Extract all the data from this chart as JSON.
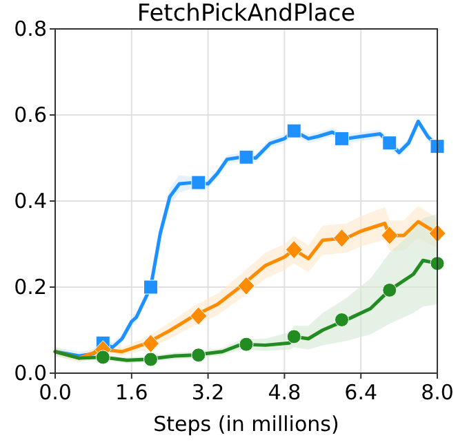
{
  "chart_data": {
    "type": "line",
    "title": "FetchPickAndPlace",
    "xlabel": "Steps (in millions)",
    "xlim": [
      0,
      8
    ],
    "xticks": [
      {
        "value": 0,
        "label": "0.0"
      },
      1.6,
      3.2,
      4.8,
      6.4,
      {
        "value": 8,
        "label": "8.0"
      }
    ],
    "ylim": [
      0,
      0.8
    ],
    "yticks": [
      {
        "value": 0,
        "label": "0.0"
      },
      0.2,
      0.4,
      0.6,
      0.8
    ],
    "grid": true,
    "line_style": "solid",
    "series": [
      {
        "type": "scatter",
        "color": "#1e90ff",
        "marker": "square",
        "x": [
          1,
          2,
          3,
          4,
          5,
          6,
          7,
          8
        ],
        "values": [
          0.07,
          0.2,
          0.443,
          0.502,
          0.563,
          0.545,
          0.535,
          0.527
        ]
      },
      {
        "type": "scatter",
        "color": "#ff8c00",
        "marker": "diamond",
        "x": [
          1,
          2,
          3,
          4,
          5,
          6,
          7,
          8
        ],
        "values": [
          0.055,
          0.069,
          0.133,
          0.203,
          0.287,
          0.314,
          0.32,
          0.325
        ]
      },
      {
        "type": "scatter",
        "color": "#228b22",
        "marker": "circle",
        "x": [
          1,
          2,
          3,
          4,
          5,
          6,
          7,
          8
        ],
        "values": [
          0.037,
          0.032,
          0.042,
          0.067,
          0.085,
          0.124,
          0.193,
          0.255
        ]
      },
      {
        "color": "#1e90ff",
        "marker": "none",
        "x": [
          0,
          0.5,
          0.8,
          1.0,
          1.2,
          1.4,
          1.6,
          1.7,
          2.0,
          2.2,
          2.4,
          2.6,
          2.9,
          3.2,
          3.4,
          3.6,
          3.9,
          4.2,
          4.5,
          4.8,
          5.0,
          5.3,
          5.5,
          5.8,
          6.1,
          6.4,
          6.8,
          7.0,
          7.2,
          7.4,
          7.6,
          7.8,
          8.0
        ],
        "values": [
          0.05,
          0.04,
          0.045,
          0.07,
          0.06,
          0.08,
          0.12,
          0.13,
          0.2,
          0.325,
          0.41,
          0.44,
          0.443,
          0.44,
          0.465,
          0.497,
          0.502,
          0.5,
          0.534,
          0.545,
          0.563,
          0.545,
          0.55,
          0.56,
          0.545,
          0.55,
          0.556,
          0.535,
          0.513,
          0.535,
          0.585,
          0.55,
          0.527
        ],
        "lower": [
          0.04,
          0.03,
          0.035,
          0.06,
          0.05,
          0.07,
          0.11,
          0.12,
          0.19,
          0.31,
          0.39,
          0.42,
          0.43,
          0.43,
          0.455,
          0.487,
          0.492,
          0.49,
          0.524,
          0.535,
          0.553,
          0.535,
          0.54,
          0.55,
          0.535,
          0.54,
          0.546,
          0.525,
          0.503,
          0.525,
          0.575,
          0.54,
          0.517
        ],
        "upper": [
          0.06,
          0.05,
          0.055,
          0.08,
          0.07,
          0.09,
          0.13,
          0.14,
          0.21,
          0.34,
          0.43,
          0.46,
          0.456,
          0.45,
          0.475,
          0.507,
          0.512,
          0.51,
          0.544,
          0.555,
          0.573,
          0.555,
          0.56,
          0.57,
          0.555,
          0.56,
          0.566,
          0.545,
          0.523,
          0.545,
          0.595,
          0.56,
          0.537
        ]
      },
      {
        "color": "#ff8c00",
        "marker": "none",
        "x": [
          0,
          0.5,
          1.0,
          1.4,
          1.9,
          2.4,
          2.9,
          3.4,
          3.9,
          4.4,
          4.8,
          5.0,
          5.3,
          5.6,
          6.1,
          6.4,
          6.9,
          7.0,
          7.3,
          7.6,
          8.0
        ],
        "values": [
          0.05,
          0.035,
          0.055,
          0.05,
          0.069,
          0.099,
          0.133,
          0.16,
          0.203,
          0.25,
          0.27,
          0.287,
          0.266,
          0.309,
          0.314,
          0.33,
          0.348,
          0.32,
          0.32,
          0.352,
          0.325
        ],
        "lower": [
          0.04,
          0.025,
          0.045,
          0.04,
          0.055,
          0.08,
          0.11,
          0.135,
          0.175,
          0.22,
          0.24,
          0.255,
          0.235,
          0.275,
          0.28,
          0.295,
          0.31,
          0.285,
          0.285,
          0.315,
          0.29
        ],
        "upper": [
          0.06,
          0.045,
          0.065,
          0.06,
          0.083,
          0.118,
          0.156,
          0.185,
          0.231,
          0.28,
          0.3,
          0.319,
          0.297,
          0.343,
          0.348,
          0.365,
          0.386,
          0.355,
          0.355,
          0.389,
          0.36
        ]
      },
      {
        "color": "#228b22",
        "marker": "none",
        "x": [
          0,
          0.5,
          1.0,
          1.5,
          1.9,
          2.5,
          2.9,
          3.5,
          3.9,
          4.4,
          4.9,
          5.0,
          5.3,
          5.6,
          6.1,
          6.6,
          7.0,
          7.5,
          7.7,
          8.0
        ],
        "values": [
          0.05,
          0.035,
          0.037,
          0.03,
          0.032,
          0.04,
          0.042,
          0.05,
          0.067,
          0.065,
          0.07,
          0.085,
          0.08,
          0.1,
          0.124,
          0.15,
          0.193,
          0.23,
          0.262,
          0.255
        ],
        "lower": [
          0.04,
          0.028,
          0.03,
          0.023,
          0.025,
          0.032,
          0.034,
          0.042,
          0.055,
          0.052,
          0.055,
          0.06,
          0.055,
          0.065,
          0.075,
          0.09,
          0.115,
          0.14,
          0.155,
          0.16
        ],
        "upper": [
          0.06,
          0.042,
          0.044,
          0.037,
          0.039,
          0.048,
          0.05,
          0.058,
          0.079,
          0.08,
          0.095,
          0.11,
          0.11,
          0.14,
          0.175,
          0.22,
          0.28,
          0.33,
          0.36,
          0.37
        ]
      }
    ]
  }
}
